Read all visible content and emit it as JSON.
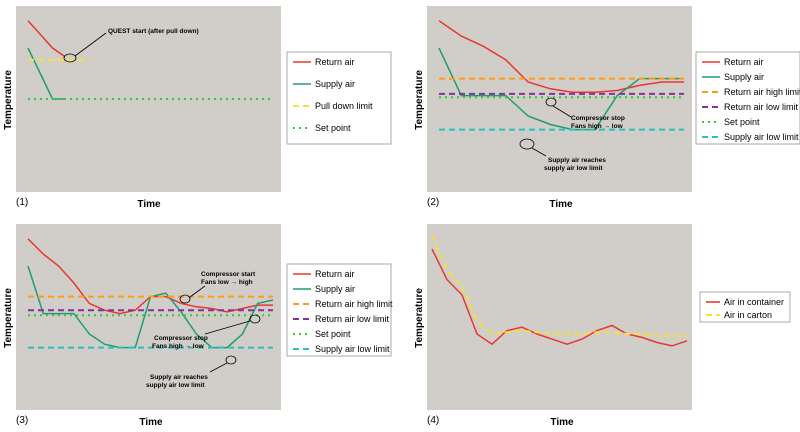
{
  "chart_data": [
    {
      "type": "line",
      "panel_label": "(1)",
      "xlabel": "Time",
      "ylabel": "Temperature",
      "x": [
        0,
        1,
        2,
        3,
        4,
        5,
        6,
        7,
        8,
        9,
        10,
        11,
        12,
        13,
        14,
        15,
        16,
        17,
        18,
        19,
        20
      ],
      "ylim": [
        0,
        100
      ],
      "series": [
        {
          "name": "Return air",
          "color": "#e8382e",
          "dash": "solid",
          "values": [
            96,
            88,
            80,
            75,
            null,
            null,
            null,
            null,
            null,
            null,
            null,
            null,
            null,
            null,
            null,
            null,
            null,
            null,
            null,
            null,
            null
          ]
        },
        {
          "name": "Supply air",
          "color": "#1f9e6e",
          "dash": "solid",
          "values": [
            80,
            65,
            50,
            50,
            null,
            null,
            null,
            null,
            null,
            null,
            null,
            null,
            null,
            null,
            null,
            null,
            null,
            null,
            null,
            null,
            null
          ]
        },
        {
          "name": "Pull down limit",
          "color": "#f5e03a",
          "dash": "dash",
          "values": [
            73,
            73,
            73,
            73,
            73,
            73,
            null,
            null,
            null,
            null,
            null,
            null,
            null,
            null,
            null,
            null,
            null,
            null,
            null,
            null,
            null
          ]
        },
        {
          "name": "Set point",
          "color": "#33cc33",
          "dash": "dot",
          "values": [
            50,
            50,
            50,
            50,
            50,
            50,
            50,
            50,
            50,
            50,
            50,
            50,
            50,
            50,
            50,
            50,
            50,
            50,
            50,
            50,
            50
          ]
        }
      ],
      "annotations": [
        {
          "text": "QUEST start (after pull down)",
          "x": 3,
          "y": 75
        }
      ],
      "legend_position": "right"
    },
    {
      "type": "line",
      "panel_label": "(2)",
      "xlabel": "Time",
      "ylabel": "Temperature",
      "x": [
        0,
        1,
        2,
        3,
        4,
        5,
        6,
        7,
        8,
        9,
        10,
        11
      ],
      "ylim": [
        0,
        100
      ],
      "series": [
        {
          "name": "Return air",
          "color": "#e8382e",
          "dash": "solid",
          "values": [
            96,
            87,
            81,
            73,
            60,
            56,
            54,
            54,
            55,
            58,
            60,
            60
          ]
        },
        {
          "name": "Supply air",
          "color": "#1f9e6e",
          "dash": "solid",
          "values": [
            80,
            52,
            52,
            52,
            40,
            35,
            32,
            32,
            52,
            62,
            62,
            62
          ]
        },
        {
          "name": "Return air high limit",
          "color": "#ff9a1a",
          "dash": "dash",
          "values": [
            62,
            62,
            62,
            62,
            62,
            62,
            62,
            62,
            62,
            62,
            62,
            62
          ]
        },
        {
          "name": "Return air low limit",
          "color": "#8b2f9e",
          "dash": "dash",
          "values": [
            53,
            53,
            53,
            53,
            53,
            53,
            53,
            53,
            53,
            53,
            53,
            53
          ]
        },
        {
          "name": "Set point",
          "color": "#33cc33",
          "dash": "dot",
          "values": [
            51,
            51,
            51,
            51,
            51,
            51,
            51,
            51,
            51,
            51,
            51,
            51
          ]
        },
        {
          "name": "Supply air low limit",
          "color": "#2bbfbf",
          "dash": "dash",
          "values": [
            32,
            32,
            32,
            32,
            32,
            32,
            32,
            32,
            32,
            32,
            32,
            32
          ]
        }
      ],
      "annotations": [
        {
          "text": "Compressor stop",
          "x": 7,
          "y": 54
        },
        {
          "text": "Fans high → low",
          "x": 7,
          "y": 54
        },
        {
          "text": "Supply air reaches",
          "x": 6,
          "y": 32
        },
        {
          "text": "supply air low limit",
          "x": 6,
          "y": 32
        }
      ],
      "legend_position": "right"
    },
    {
      "type": "line",
      "panel_label": "(3)",
      "xlabel": "Time",
      "ylabel": "Temperature",
      "x": [
        0,
        1,
        2,
        3,
        4,
        5,
        6,
        7,
        8,
        9,
        10,
        11,
        12,
        13,
        14,
        15,
        16
      ],
      "ylim": [
        0,
        100
      ],
      "series": [
        {
          "name": "Return air",
          "color": "#e8382e",
          "dash": "solid",
          "values": [
            96,
            87,
            80,
            70,
            58,
            54,
            52,
            54,
            62,
            62,
            58,
            56,
            55,
            53,
            55,
            57,
            57
          ]
        },
        {
          "name": "Supply air",
          "color": "#1f9e6e",
          "dash": "solid",
          "values": [
            80,
            52,
            52,
            52,
            40,
            34,
            32,
            32,
            62,
            64,
            53,
            40,
            32,
            32,
            40,
            58,
            60
          ]
        },
        {
          "name": "Return air high limit",
          "color": "#ff9a1a",
          "dash": "dash",
          "values": [
            62,
            62,
            62,
            62,
            62,
            62,
            62,
            62,
            62,
            62,
            62,
            62,
            62,
            62,
            62,
            62,
            62
          ]
        },
        {
          "name": "Return air low limit",
          "color": "#8b2f9e",
          "dash": "dash",
          "values": [
            54,
            54,
            54,
            54,
            54,
            54,
            54,
            54,
            54,
            54,
            54,
            54,
            54,
            54,
            54,
            54,
            54
          ]
        },
        {
          "name": "Set point",
          "color": "#33cc33",
          "dash": "dot",
          "values": [
            51,
            51,
            51,
            51,
            51,
            51,
            51,
            51,
            51,
            51,
            51,
            51,
            51,
            51,
            51,
            51,
            51
          ]
        },
        {
          "name": "Supply air low limit",
          "color": "#2bbfbf",
          "dash": "dash",
          "values": [
            32,
            32,
            32,
            32,
            32,
            32,
            32,
            32,
            32,
            32,
            32,
            32,
            32,
            32,
            32,
            32,
            32
          ]
        }
      ],
      "annotations": [
        {
          "text": "Compressor start",
          "x": 9,
          "y": 62
        },
        {
          "text": "Fans low → high",
          "x": 9,
          "y": 62
        },
        {
          "text": "Compressor stop",
          "x": 14,
          "y": 55
        },
        {
          "text": "Fans high → low",
          "x": 14,
          "y": 55
        },
        {
          "text": "Supply air reaches",
          "x": 12,
          "y": 32
        },
        {
          "text": "supply air low limit",
          "x": 12,
          "y": 32
        }
      ],
      "legend_position": "right"
    },
    {
      "type": "line",
      "panel_label": "(4)",
      "xlabel": "Time",
      "ylabel": "Temperature",
      "x": [
        0,
        1,
        2,
        3,
        4,
        5,
        6,
        7,
        8,
        9,
        10,
        11,
        12,
        13,
        14,
        15,
        16,
        17
      ],
      "ylim": [
        0,
        100
      ],
      "series": [
        {
          "name": "Air in container",
          "color": "#e8382e",
          "dash": "solid",
          "values": [
            90,
            72,
            63,
            40,
            34,
            42,
            44,
            40,
            37,
            34,
            37,
            42,
            45,
            40,
            38,
            35,
            33,
            36
          ]
        },
        {
          "name": "Air in carton",
          "color": "#f5e03a",
          "dash": "dash",
          "values": [
            98,
            78,
            68,
            48,
            40,
            41,
            42,
            41,
            40,
            40,
            40,
            41,
            41,
            40,
            40,
            39,
            39,
            39
          ]
        }
      ],
      "legend_position": "right"
    }
  ]
}
